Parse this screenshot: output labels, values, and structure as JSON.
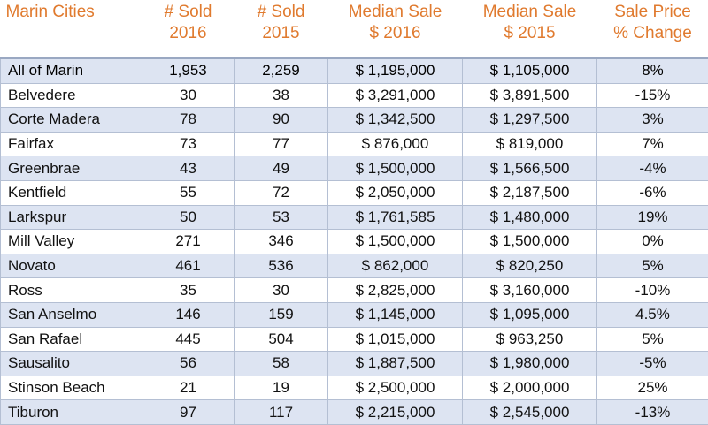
{
  "table": {
    "headers": [
      [
        "Marin Cities"
      ],
      [
        "# Sold",
        "2016"
      ],
      [
        "# Sold",
        "2015"
      ],
      [
        "Median Sale",
        "$ 2016"
      ],
      [
        "Median Sale",
        "$ 2015"
      ],
      [
        "Sale Price",
        "% Change"
      ]
    ],
    "rows": [
      [
        "All of Marin",
        "1,953",
        "2,259",
        "$ 1,195,000",
        "$ 1,105,000",
        "8%"
      ],
      [
        "Belvedere",
        "30",
        "38",
        "$ 3,291,000",
        "$ 3,891,500",
        "-15%"
      ],
      [
        "Corte Madera",
        "78",
        "90",
        "$ 1,342,500",
        "$ 1,297,500",
        "3%"
      ],
      [
        "Fairfax",
        "73",
        "77",
        "$ 876,000",
        "$ 819,000",
        "7%"
      ],
      [
        "Greenbrae",
        "43",
        "49",
        "$ 1,500,000",
        "$ 1,566,500",
        "-4%"
      ],
      [
        "Kentfield",
        "55",
        "72",
        "$ 2,050,000",
        "$ 2,187,500",
        "-6%"
      ],
      [
        "Larkspur",
        "50",
        "53",
        "$ 1,761,585",
        "$ 1,480,000",
        "19%"
      ],
      [
        "Mill Valley",
        "271",
        "346",
        "$ 1,500,000",
        "$ 1,500,000",
        "0%"
      ],
      [
        "Novato",
        "461",
        "536",
        "$ 862,000",
        "$ 820,250",
        "5%"
      ],
      [
        "Ross",
        "35",
        "30",
        "$ 2,825,000",
        "$ 3,160,000",
        "-10%"
      ],
      [
        "San Anselmo",
        "146",
        "159",
        "$ 1,145,000",
        "$ 1,095,000",
        "4.5%"
      ],
      [
        "San Rafael",
        "445",
        "504",
        "$ 1,015,000",
        "$ 963,250",
        "5%"
      ],
      [
        "Sausalito",
        "56",
        "58",
        "$ 1,887,500",
        "$ 1,980,000",
        "-5%"
      ],
      [
        "Stinson Beach",
        "21",
        "19",
        "$ 2,500,000",
        "$ 2,000,000",
        "25%"
      ],
      [
        "Tiburon",
        "97",
        "117",
        "$ 2,215,000",
        "$ 2,545,000",
        "-13%"
      ]
    ]
  },
  "colors": {
    "header_text": "#e07a2e",
    "stripe": "#dde4f2",
    "grid": "#b4bfd3"
  }
}
